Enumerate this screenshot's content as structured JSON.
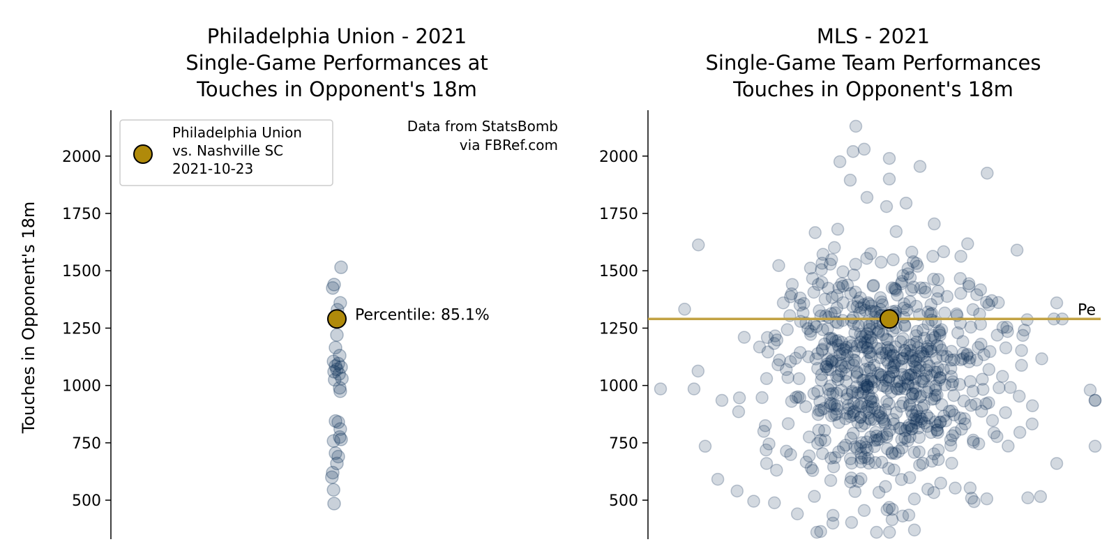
{
  "colors": {
    "dot": "#0b2d55",
    "highlight": "#b08a0a",
    "hline": "#c2a243",
    "text": "#000000",
    "legend_border": "#cccccc"
  },
  "chart_data": [
    {
      "type": "scatter",
      "title_lines": [
        "Philadelphia Union - 2021",
        "Single-Game Performances at",
        "Touches in Opponent's 18m"
      ],
      "ylabel": "Touches in Opponent's 18m",
      "ylim": [
        330,
        2200
      ],
      "yticks": [
        500,
        750,
        1000,
        1250,
        1500,
        1750,
        2000
      ],
      "grid": false,
      "x_center": 0,
      "points": [
        {
          "x": 0.15,
          "y": 1515
        },
        {
          "x": -0.1,
          "y": 1440
        },
        {
          "x": -0.15,
          "y": 1425
        },
        {
          "x": 0.12,
          "y": 1360
        },
        {
          "x": 0.02,
          "y": 1330
        },
        {
          "x": -0.05,
          "y": 1300
        },
        {
          "x": 0.0,
          "y": 1220
        },
        {
          "x": -0.05,
          "y": 1165
        },
        {
          "x": 0.1,
          "y": 1130
        },
        {
          "x": -0.12,
          "y": 1105
        },
        {
          "x": 0.05,
          "y": 1095
        },
        {
          "x": -0.05,
          "y": 1085
        },
        {
          "x": 0.15,
          "y": 1080
        },
        {
          "x": 0.0,
          "y": 1070
        },
        {
          "x": -0.1,
          "y": 1060
        },
        {
          "x": 0.08,
          "y": 1050
        },
        {
          "x": 0.18,
          "y": 1030
        },
        {
          "x": -0.08,
          "y": 1025
        },
        {
          "x": 0.1,
          "y": 990
        },
        {
          "x": 0.12,
          "y": 975
        },
        {
          "x": -0.05,
          "y": 845
        },
        {
          "x": 0.05,
          "y": 840
        },
        {
          "x": 0.12,
          "y": 810
        },
        {
          "x": 0.1,
          "y": 775
        },
        {
          "x": 0.15,
          "y": 765
        },
        {
          "x": -0.12,
          "y": 758
        },
        {
          "x": -0.05,
          "y": 705
        },
        {
          "x": 0.05,
          "y": 690
        },
        {
          "x": 0.0,
          "y": 660
        },
        {
          "x": -0.15,
          "y": 620
        },
        {
          "x": -0.18,
          "y": 600
        },
        {
          "x": -0.12,
          "y": 545
        },
        {
          "x": -0.1,
          "y": 485
        }
      ],
      "highlight": {
        "y": 1290,
        "legend": [
          "Philadelphia Union",
          "vs. Nashville SC",
          "2021-10-23"
        ]
      },
      "percentile_label": "Percentile: 85.1%",
      "source_note": [
        "Data from StatsBomb",
        "via FBRef.com"
      ],
      "legend_position": "upper-left"
    },
    {
      "type": "scatter",
      "title_lines": [
        "MLS - 2021",
        "Single-Game Team Performances",
        "Touches in Opponent's 18m"
      ],
      "ylim": [
        330,
        2200
      ],
      "yticks": [
        500,
        750,
        1000,
        1250,
        1500,
        1750,
        2000
      ],
      "grid": false,
      "x_center": 0,
      "highlight": {
        "y": 1290
      },
      "hline_y": 1290,
      "hline_label": "Pe",
      "outliers": [
        {
          "x": -4.1,
          "y": 985
        },
        {
          "x": -3.5,
          "y": 985
        },
        {
          "x": -3.3,
          "y": 735
        },
        {
          "x": -3.0,
          "y": 935
        },
        {
          "x": -2.6,
          "y": 1210
        },
        {
          "x": -2.2,
          "y": 660
        },
        {
          "x": -2.25,
          "y": 800
        },
        {
          "x": -2.2,
          "y": 1030
        },
        {
          "x": -1.9,
          "y": 1360
        },
        {
          "x": -1.6,
          "y": 1350
        },
        {
          "x": 3.0,
          "y": 1360
        },
        {
          "x": 2.95,
          "y": 1290
        },
        {
          "x": 3.1,
          "y": 1290
        },
        {
          "x": 3.0,
          "y": 660
        },
        {
          "x": 3.6,
          "y": 980
        },
        {
          "x": 3.85,
          "y": 935
        },
        {
          "x": 3.9,
          "y": 935
        },
        {
          "x": 4.05,
          "y": 735
        }
      ],
      "cloud": {
        "n": 720,
        "seed": 7,
        "x_spread": 1.05,
        "y_center": 1055,
        "y_spread": 265
      },
      "extremes": [
        {
          "x": -0.6,
          "y": 2130
        },
        {
          "x": -0.45,
          "y": 2030
        },
        {
          "x": -0.65,
          "y": 2020
        },
        {
          "x": 0.0,
          "y": 1990
        },
        {
          "x": 0.55,
          "y": 1955
        },
        {
          "x": 0.0,
          "y": 1900
        },
        {
          "x": -0.7,
          "y": 1895
        },
        {
          "x": -0.4,
          "y": 1820
        },
        {
          "x": 0.3,
          "y": 1795
        },
        {
          "x": -0.05,
          "y": 1780
        },
        {
          "x": 0.45,
          "y": 370
        },
        {
          "x": 0.35,
          "y": 435
        },
        {
          "x": 0.05,
          "y": 415
        },
        {
          "x": -0.45,
          "y": 455
        }
      ]
    }
  ]
}
